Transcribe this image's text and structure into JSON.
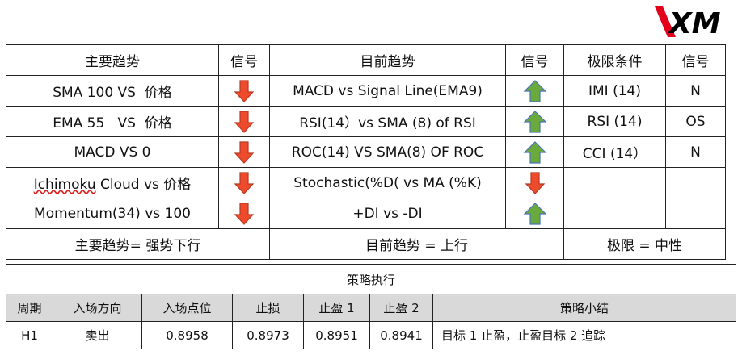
{
  "logo": "XM",
  "upper": {
    "header": [
      "主要趋势",
      "信号",
      "目前趋势",
      "信号",
      "极限条件",
      "信号"
    ],
    "rows": [
      {
        "main": "SMA 100 VS  价格",
        "current": "MACD vs Signal Line(EMA9)",
        "limit": "IMI (14)",
        "limit_signal": "N"
      },
      {
        "main": "EMA 55   VS  价格",
        "current": "RSI(14）vs SMA (8) of RSI",
        "limit": "RSI (14)",
        "limit_signal": "OS"
      },
      {
        "main": "MACD VS 0",
        "current": "ROC(14) VS SMA(8) OF ROC",
        "limit": "CCI (14）",
        "limit_signal": "N"
      },
      {
        "main_a": "Ichimoku",
        "main_b": " Cloud vs 价格",
        "current": "Stochastic(%D( vs MA (%K)"
      },
      {
        "main": "Momentum(34) vs 100",
        "current": "+DI vs -DI"
      }
    ],
    "summary": [
      "主要趋势= 强势下行",
      "目前趋势 = 上行",
      "极限 = 中性"
    ]
  },
  "strategy": {
    "title": "策略执行",
    "header": [
      "周期",
      "入场方向",
      "入场点位",
      "止损",
      "止盈 1",
      "止盈 2",
      "策略小结"
    ],
    "row": [
      "H1",
      "卖出",
      "0.8958",
      "0.8973",
      "0.8951",
      "0.8941",
      "目标 1 止盈，止盈目标 2 追踪"
    ]
  }
}
